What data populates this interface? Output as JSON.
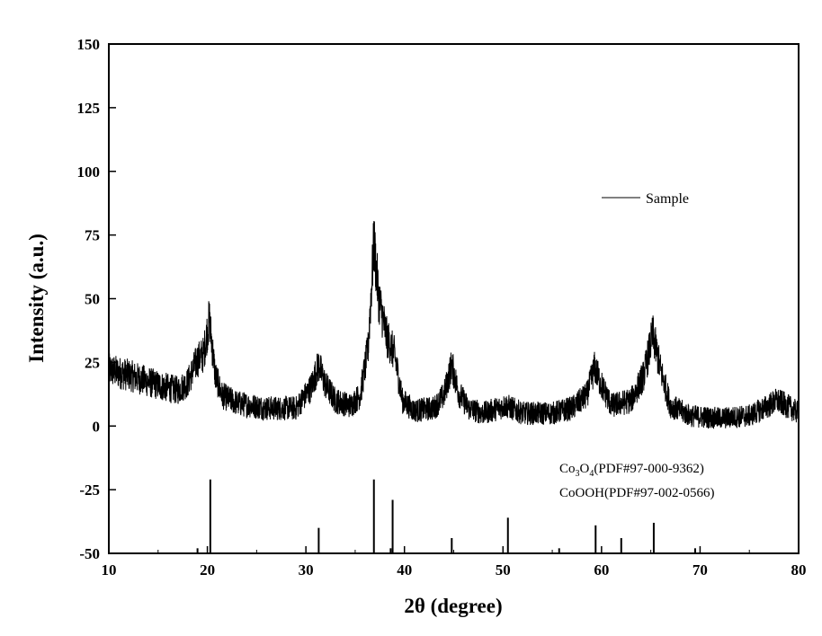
{
  "chart_data": {
    "type": "line",
    "xlabel": "2θ (degree)",
    "ylabel": "Intensity (a.u.)",
    "xlim": [
      10,
      80
    ],
    "ylim": [
      -50,
      150
    ],
    "x_ticks": [
      10,
      20,
      30,
      40,
      50,
      60,
      70,
      80
    ],
    "y_ticks": [
      -50,
      -25,
      0,
      25,
      50,
      75,
      100,
      125,
      150
    ],
    "grid": false,
    "legend": {
      "placement": "upper-right",
      "entries": [
        "Sample"
      ]
    },
    "series": [
      {
        "name": "Sample",
        "color": "#000000",
        "noisy": true,
        "baseline_points": [
          [
            10,
            22
          ],
          [
            12,
            20
          ],
          [
            15,
            16
          ],
          [
            17,
            14
          ],
          [
            18,
            17
          ],
          [
            19,
            26
          ],
          [
            19.6,
            28
          ],
          [
            20.2,
            42
          ],
          [
            20.8,
            20
          ],
          [
            21.5,
            12
          ],
          [
            23,
            9
          ],
          [
            26,
            7
          ],
          [
            29,
            7
          ],
          [
            30.5,
            15
          ],
          [
            31.3,
            24
          ],
          [
            32,
            16
          ],
          [
            33,
            10
          ],
          [
            34.5,
            8
          ],
          [
            35.5,
            12
          ],
          [
            36.3,
            30
          ],
          [
            36.9,
            72
          ],
          [
            37.4,
            50
          ],
          [
            38.2,
            35
          ],
          [
            39,
            28
          ],
          [
            39.8,
            10
          ],
          [
            41,
            6
          ],
          [
            43,
            7
          ],
          [
            44,
            12
          ],
          [
            44.8,
            24
          ],
          [
            45.5,
            13
          ],
          [
            46.5,
            7
          ],
          [
            48,
            5
          ],
          [
            50.3,
            8
          ],
          [
            52,
            5
          ],
          [
            55,
            5
          ],
          [
            57,
            7
          ],
          [
            58.5,
            12
          ],
          [
            59.3,
            23
          ],
          [
            60,
            16
          ],
          [
            61,
            8
          ],
          [
            63,
            10
          ],
          [
            64.3,
            20
          ],
          [
            65.2,
            36
          ],
          [
            66,
            22
          ],
          [
            67,
            8
          ],
          [
            69,
            4
          ],
          [
            72,
            3
          ],
          [
            75,
            4
          ],
          [
            76.5,
            7
          ],
          [
            77.8,
            10
          ],
          [
            78.8,
            8
          ],
          [
            80,
            5
          ]
        ]
      }
    ],
    "reference_patterns": [
      {
        "name": "Co3O4(PDF#97-000-9362)",
        "peaks": [
          {
            "two_theta": 19.0,
            "intensity": -48
          },
          {
            "two_theta": 31.3,
            "intensity": -40
          },
          {
            "two_theta": 36.9,
            "intensity": -21
          },
          {
            "two_theta": 38.6,
            "intensity": -48
          },
          {
            "two_theta": 44.8,
            "intensity": -44
          },
          {
            "two_theta": 55.7,
            "intensity": -48
          },
          {
            "two_theta": 59.4,
            "intensity": -39
          },
          {
            "two_theta": 65.3,
            "intensity": -38
          }
        ]
      },
      {
        "name": "CoOOH(PDF#97-002-0566)",
        "peaks": [
          {
            "two_theta": 20.3,
            "intensity": -21
          },
          {
            "two_theta": 38.8,
            "intensity": -29
          },
          {
            "two_theta": 50.5,
            "intensity": -36
          },
          {
            "two_theta": 62.0,
            "intensity": -44
          },
          {
            "two_theta": 69.5,
            "intensity": -48
          }
        ]
      }
    ],
    "annotations": {
      "ref_label_1_main": "Co",
      "ref_label_1_sub1": "3",
      "ref_label_1_mid": "O",
      "ref_label_1_sub2": "4",
      "ref_label_1_rest": "(PDF#97-000-9362)",
      "ref_label_2": "CoOOH(PDF#97-002-0566)"
    }
  }
}
